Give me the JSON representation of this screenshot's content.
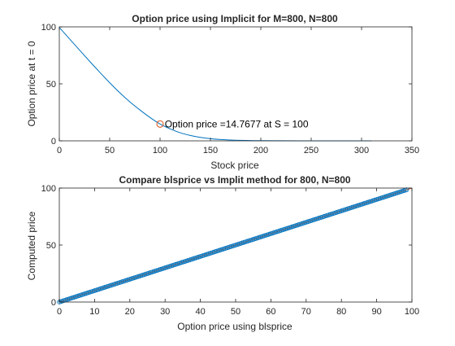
{
  "chart_data": [
    {
      "type": "line",
      "title": "Option price using Implicit for M=800, N=800",
      "xlabel": "Stock price",
      "ylabel": "Option price at t = 0",
      "xlim": [
        0,
        350
      ],
      "ylim": [
        0,
        100
      ],
      "xticks": [
        0,
        50,
        100,
        150,
        200,
        250,
        300,
        350
      ],
      "yticks": [
        0,
        50,
        100
      ],
      "grid": false,
      "series": [
        {
          "color": "#0072BD",
          "x": [
            0,
            10,
            20,
            30,
            40,
            50,
            60,
            70,
            80,
            90,
            100,
            110,
            120,
            130,
            140,
            150,
            160,
            170,
            180,
            190,
            200,
            220,
            240,
            260,
            280,
            300,
            310
          ],
          "y": [
            99.5,
            89.6,
            79.7,
            69.9,
            60.3,
            51.0,
            42.2,
            34.2,
            27.1,
            20.5,
            14.8,
            10.5,
            7.1,
            4.7,
            3.0,
            1.9,
            1.15,
            0.7,
            0.42,
            0.25,
            0.15,
            0.06,
            0.02,
            0.008,
            0.003,
            0.001,
            0.0
          ]
        }
      ],
      "marker": {
        "x": 100,
        "y": 14.7677,
        "color": "#D95319"
      },
      "annotation": {
        "text": "Option price =14.7677 at S = 100",
        "x": 103,
        "y": 14.7677
      }
    },
    {
      "type": "scatter",
      "title": "Compare blsprice vs Implit method for 800, N=800",
      "xlabel": "Option price using blsprice",
      "ylabel": "Computed price",
      "xlim": [
        0,
        100
      ],
      "ylim": [
        0,
        100
      ],
      "xticks": [
        0,
        10,
        20,
        30,
        40,
        50,
        60,
        70,
        80,
        90,
        100
      ],
      "yticks": [
        0,
        50,
        100
      ],
      "grid": false,
      "series": [
        {
          "color": "#0072BD",
          "x_range": [
            0,
            98.5
          ],
          "relation": "y = x"
        }
      ],
      "reference_line": {
        "color": "#D95319",
        "from": [
          0,
          0
        ],
        "to": [
          100,
          100
        ]
      }
    }
  ]
}
